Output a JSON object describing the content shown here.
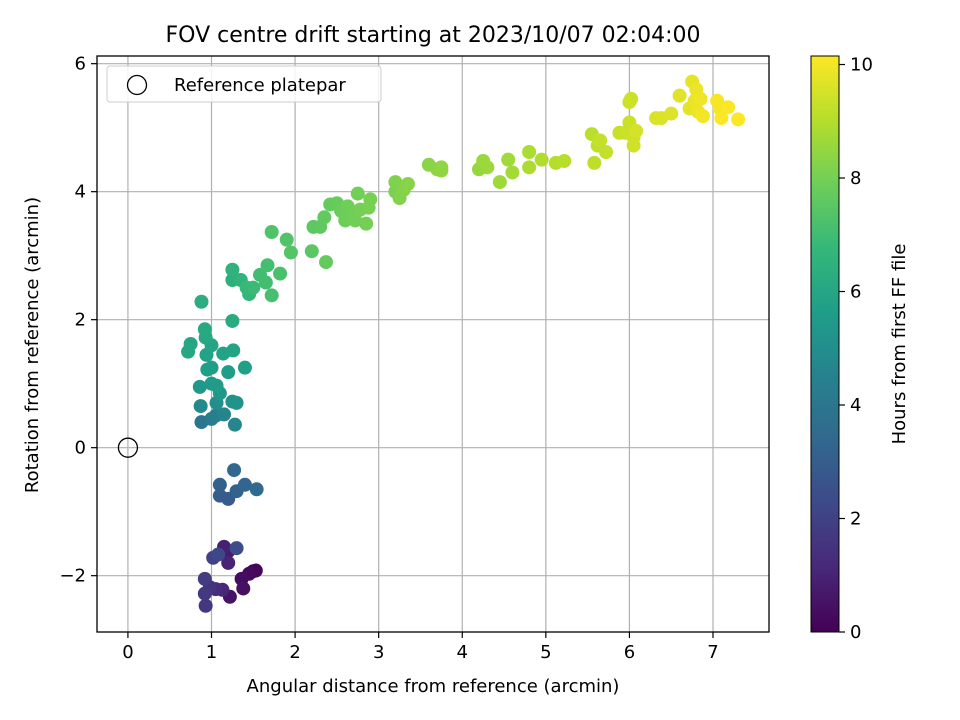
{
  "chart_data": {
    "type": "scatter",
    "title": "FOV centre drift starting at 2023/10/07 02:04:00",
    "xlabel": "Angular distance from reference (arcmin)",
    "ylabel": "Rotation from reference (arcmin)",
    "xlim": [
      -0.37,
      7.67
    ],
    "ylim": [
      -2.88,
      6.12
    ],
    "xticks": [
      0,
      1,
      2,
      3,
      4,
      5,
      6,
      7
    ],
    "xtick_labels": [
      "0",
      "1",
      "2",
      "3",
      "4",
      "5",
      "6",
      "7"
    ],
    "yticks": [
      -2,
      0,
      2,
      4,
      6
    ],
    "ytick_labels": [
      "−2",
      "0",
      "2",
      "4",
      "6"
    ],
    "grid": true,
    "legend": {
      "placement": "top-left",
      "entries": [
        "Reference platepar"
      ]
    },
    "reference_point": {
      "x": 0,
      "y": 0
    },
    "colorbar": {
      "label": "Hours from first FF file",
      "range": [
        0,
        10.15
      ],
      "ticks": [
        0,
        2,
        4,
        6,
        8,
        10
      ],
      "tick_labels": [
        "0",
        "2",
        "4",
        "6",
        "8",
        "10"
      ],
      "colormap": [
        "#440154",
        "#482878",
        "#3e4989",
        "#31688e",
        "#26828e",
        "#1f9e89",
        "#35b779",
        "#6ece58",
        "#b5de2b",
        "#fde725"
      ]
    },
    "points": [
      {
        "x": 1.5,
        "y": -1.93,
        "t": 0.1
      },
      {
        "x": 1.53,
        "y": -1.92,
        "t": 0.15
      },
      {
        "x": 1.45,
        "y": -1.97,
        "t": 0.25
      },
      {
        "x": 1.36,
        "y": -2.05,
        "t": 0.35
      },
      {
        "x": 1.38,
        "y": -2.2,
        "t": 0.45
      },
      {
        "x": 1.22,
        "y": -2.33,
        "t": 0.55
      },
      {
        "x": 1.2,
        "y": -1.62,
        "t": 0.75
      },
      {
        "x": 1.15,
        "y": -1.55,
        "t": 0.9
      },
      {
        "x": 1.2,
        "y": -1.8,
        "t": 1.0
      },
      {
        "x": 1.13,
        "y": -2.22,
        "t": 1.1
      },
      {
        "x": 1.05,
        "y": -2.21,
        "t": 1.3
      },
      {
        "x": 0.98,
        "y": -2.18,
        "t": 1.5
      },
      {
        "x": 0.93,
        "y": -2.47,
        "t": 1.6
      },
      {
        "x": 0.92,
        "y": -2.28,
        "t": 1.7
      },
      {
        "x": 0.92,
        "y": -2.05,
        "t": 1.8
      },
      {
        "x": 1.02,
        "y": -1.72,
        "t": 2.0
      },
      {
        "x": 1.08,
        "y": -1.67,
        "t": 2.2
      },
      {
        "x": 1.3,
        "y": -1.57,
        "t": 2.4
      },
      {
        "x": 1.2,
        "y": -0.8,
        "t": 2.9
      },
      {
        "x": 1.1,
        "y": -0.75,
        "t": 3.0
      },
      {
        "x": 1.1,
        "y": -0.58,
        "t": 3.1
      },
      {
        "x": 1.3,
        "y": -0.68,
        "t": 3.2
      },
      {
        "x": 1.4,
        "y": -0.58,
        "t": 3.3
      },
      {
        "x": 1.27,
        "y": -0.35,
        "t": 3.4
      },
      {
        "x": 1.54,
        "y": -0.65,
        "t": 3.5
      },
      {
        "x": 0.88,
        "y": 0.4,
        "t": 4.0
      },
      {
        "x": 1.0,
        "y": 0.45,
        "t": 4.2
      },
      {
        "x": 1.05,
        "y": 0.5,
        "t": 4.4
      },
      {
        "x": 1.15,
        "y": 0.52,
        "t": 4.6
      },
      {
        "x": 1.28,
        "y": 0.36,
        "t": 4.7
      },
      {
        "x": 0.87,
        "y": 0.65,
        "t": 4.8
      },
      {
        "x": 1.06,
        "y": 0.7,
        "t": 5.0
      },
      {
        "x": 1.25,
        "y": 0.72,
        "t": 5.1
      },
      {
        "x": 1.3,
        "y": 0.7,
        "t": 5.2
      },
      {
        "x": 1.1,
        "y": 0.85,
        "t": 5.3
      },
      {
        "x": 0.86,
        "y": 0.95,
        "t": 5.4
      },
      {
        "x": 1.0,
        "y": 1.0,
        "t": 5.5
      },
      {
        "x": 1.06,
        "y": 0.97,
        "t": 5.55
      },
      {
        "x": 1.2,
        "y": 1.18,
        "t": 5.6
      },
      {
        "x": 1.0,
        "y": 1.25,
        "t": 5.65
      },
      {
        "x": 0.95,
        "y": 1.22,
        "t": 5.7
      },
      {
        "x": 1.4,
        "y": 1.25,
        "t": 5.75
      },
      {
        "x": 0.94,
        "y": 1.45,
        "t": 5.8
      },
      {
        "x": 1.14,
        "y": 1.47,
        "t": 5.85
      },
      {
        "x": 1.26,
        "y": 1.52,
        "t": 5.9
      },
      {
        "x": 1.0,
        "y": 1.6,
        "t": 5.95
      },
      {
        "x": 0.75,
        "y": 1.62,
        "t": 6.0
      },
      {
        "x": 0.72,
        "y": 1.5,
        "t": 6.05
      },
      {
        "x": 0.93,
        "y": 1.72,
        "t": 6.1
      },
      {
        "x": 0.92,
        "y": 1.85,
        "t": 6.15
      },
      {
        "x": 1.25,
        "y": 1.98,
        "t": 6.2
      },
      {
        "x": 0.88,
        "y": 2.28,
        "t": 6.3
      },
      {
        "x": 1.25,
        "y": 2.62,
        "t": 6.4
      },
      {
        "x": 1.25,
        "y": 2.78,
        "t": 6.5
      },
      {
        "x": 1.35,
        "y": 2.62,
        "t": 6.6
      },
      {
        "x": 1.45,
        "y": 2.4,
        "t": 6.7
      },
      {
        "x": 1.42,
        "y": 2.5,
        "t": 6.8
      },
      {
        "x": 1.5,
        "y": 2.5,
        "t": 6.9
      },
      {
        "x": 1.58,
        "y": 2.7,
        "t": 7.0
      },
      {
        "x": 1.65,
        "y": 2.58,
        "t": 7.05
      },
      {
        "x": 1.67,
        "y": 2.85,
        "t": 7.1
      },
      {
        "x": 1.72,
        "y": 2.38,
        "t": 7.15
      },
      {
        "x": 1.82,
        "y": 2.72,
        "t": 7.2
      },
      {
        "x": 1.72,
        "y": 3.37,
        "t": 7.3
      },
      {
        "x": 1.9,
        "y": 3.25,
        "t": 7.35
      },
      {
        "x": 1.95,
        "y": 3.05,
        "t": 7.4
      },
      {
        "x": 2.2,
        "y": 3.07,
        "t": 7.5
      },
      {
        "x": 2.22,
        "y": 3.45,
        "t": 7.55
      },
      {
        "x": 2.3,
        "y": 3.45,
        "t": 7.6
      },
      {
        "x": 2.35,
        "y": 3.6,
        "t": 7.65
      },
      {
        "x": 2.42,
        "y": 3.8,
        "t": 7.7
      },
      {
        "x": 2.37,
        "y": 2.9,
        "t": 7.7
      },
      {
        "x": 2.5,
        "y": 3.82,
        "t": 7.75
      },
      {
        "x": 2.55,
        "y": 3.7,
        "t": 7.8
      },
      {
        "x": 2.6,
        "y": 3.55,
        "t": 7.85
      },
      {
        "x": 2.63,
        "y": 3.77,
        "t": 7.9
      },
      {
        "x": 2.7,
        "y": 3.62,
        "t": 7.9
      },
      {
        "x": 2.75,
        "y": 3.97,
        "t": 7.95
      },
      {
        "x": 2.72,
        "y": 3.55,
        "t": 7.95
      },
      {
        "x": 2.78,
        "y": 3.72,
        "t": 8.0
      },
      {
        "x": 2.85,
        "y": 3.5,
        "t": 8.0
      },
      {
        "x": 2.88,
        "y": 3.75,
        "t": 8.05
      },
      {
        "x": 2.9,
        "y": 3.88,
        "t": 8.05
      },
      {
        "x": 3.2,
        "y": 4.0,
        "t": 8.1
      },
      {
        "x": 3.2,
        "y": 4.15,
        "t": 8.15
      },
      {
        "x": 3.25,
        "y": 3.9,
        "t": 8.2
      },
      {
        "x": 3.3,
        "y": 4.03,
        "t": 8.25
      },
      {
        "x": 3.35,
        "y": 4.12,
        "t": 8.3
      },
      {
        "x": 3.6,
        "y": 4.42,
        "t": 8.35
      },
      {
        "x": 3.7,
        "y": 4.35,
        "t": 8.4
      },
      {
        "x": 3.75,
        "y": 4.38,
        "t": 8.45
      },
      {
        "x": 3.75,
        "y": 4.33,
        "t": 8.45
      },
      {
        "x": 4.2,
        "y": 4.35,
        "t": 8.55
      },
      {
        "x": 4.25,
        "y": 4.48,
        "t": 8.6
      },
      {
        "x": 4.3,
        "y": 4.38,
        "t": 8.6
      },
      {
        "x": 4.45,
        "y": 4.15,
        "t": 8.65
      },
      {
        "x": 4.55,
        "y": 4.5,
        "t": 8.7
      },
      {
        "x": 4.6,
        "y": 4.3,
        "t": 8.75
      },
      {
        "x": 4.8,
        "y": 4.62,
        "t": 8.85
      },
      {
        "x": 4.8,
        "y": 4.38,
        "t": 8.9
      },
      {
        "x": 4.95,
        "y": 4.5,
        "t": 8.95
      },
      {
        "x": 5.12,
        "y": 4.45,
        "t": 9.0
      },
      {
        "x": 5.22,
        "y": 4.48,
        "t": 9.05
      },
      {
        "x": 5.55,
        "y": 4.9,
        "t": 9.1
      },
      {
        "x": 5.58,
        "y": 4.45,
        "t": 9.15
      },
      {
        "x": 5.62,
        "y": 4.72,
        "t": 9.2
      },
      {
        "x": 5.65,
        "y": 4.8,
        "t": 9.25
      },
      {
        "x": 5.72,
        "y": 4.62,
        "t": 9.25
      },
      {
        "x": 5.88,
        "y": 4.92,
        "t": 9.3
      },
      {
        "x": 5.95,
        "y": 4.92,
        "t": 9.35
      },
      {
        "x": 6.0,
        "y": 5.08,
        "t": 9.35
      },
      {
        "x": 6.0,
        "y": 5.4,
        "t": 9.4
      },
      {
        "x": 6.02,
        "y": 5.45,
        "t": 9.4
      },
      {
        "x": 6.05,
        "y": 4.85,
        "t": 9.45
      },
      {
        "x": 6.05,
        "y": 4.72,
        "t": 9.45
      },
      {
        "x": 6.08,
        "y": 4.95,
        "t": 9.5
      },
      {
        "x": 6.32,
        "y": 5.15,
        "t": 9.55
      },
      {
        "x": 6.38,
        "y": 5.15,
        "t": 9.6
      },
      {
        "x": 6.5,
        "y": 5.22,
        "t": 9.65
      },
      {
        "x": 6.6,
        "y": 5.5,
        "t": 9.7
      },
      {
        "x": 6.72,
        "y": 5.3,
        "t": 9.75
      },
      {
        "x": 6.75,
        "y": 5.72,
        "t": 9.8
      },
      {
        "x": 6.78,
        "y": 5.42,
        "t": 9.85
      },
      {
        "x": 6.8,
        "y": 5.6,
        "t": 9.85
      },
      {
        "x": 6.82,
        "y": 5.25,
        "t": 9.9
      },
      {
        "x": 6.85,
        "y": 5.45,
        "t": 9.95
      },
      {
        "x": 6.88,
        "y": 5.18,
        "t": 10.0
      },
      {
        "x": 7.05,
        "y": 5.42,
        "t": 10.05
      },
      {
        "x": 7.08,
        "y": 5.3,
        "t": 10.05
      },
      {
        "x": 7.1,
        "y": 5.15,
        "t": 10.1
      },
      {
        "x": 7.18,
        "y": 5.32,
        "t": 10.1
      },
      {
        "x": 7.3,
        "y": 5.13,
        "t": 10.15
      }
    ]
  }
}
